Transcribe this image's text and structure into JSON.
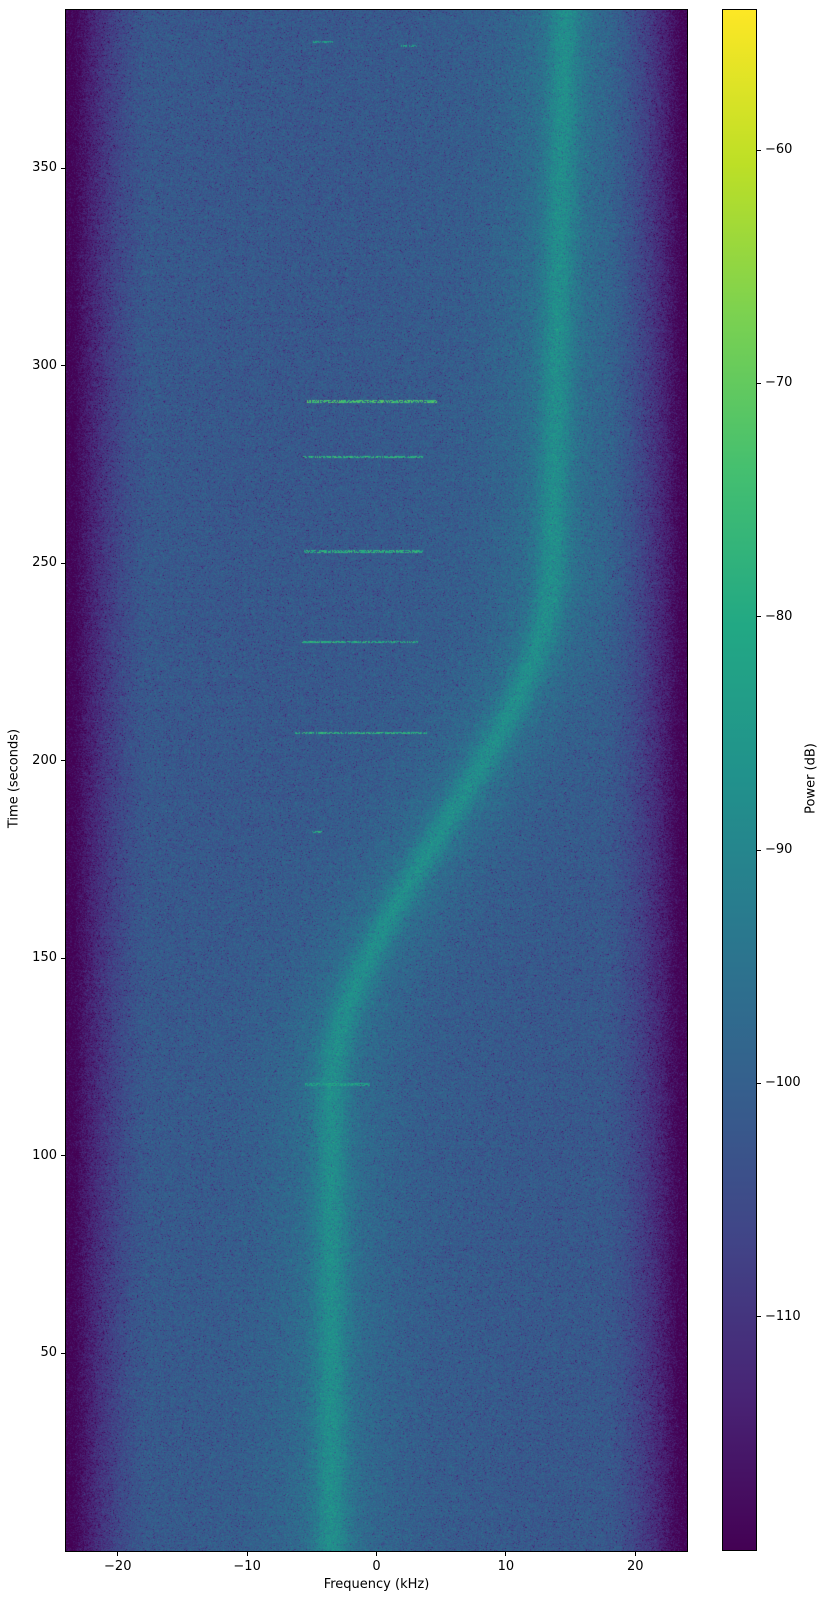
{
  "chart_data": {
    "type": "heatmap",
    "subtype": "spectrogram",
    "title": "",
    "xlabel": "Frequency (kHz)",
    "ylabel": "Time (seconds)",
    "xlim": [
      -24,
      24
    ],
    "ylim": [
      0,
      390
    ],
    "xticks": [
      -20,
      -10,
      0,
      10,
      20
    ],
    "yticks": [
      50,
      100,
      150,
      200,
      250,
      300,
      350
    ],
    "grid": false,
    "colormap": "viridis",
    "colorbar": {
      "label": "Power (dB)",
      "ticks": [
        -60,
        -70,
        -80,
        -90,
        -100,
        -110
      ],
      "vmin": -120,
      "vmax": -54,
      "position": "right"
    },
    "noise_floor_db": -101.5,
    "noise_sigma_db": 2.8,
    "band_edge": {
      "start_khz": 17.5,
      "falloff_coef": 1.05,
      "falloff_exp": 1.6,
      "min_db": -119.5
    },
    "signal_trace": {
      "description": "narrow carrier drifting from -3.5 kHz to ~14.6 kHz (S-curve vs time)",
      "f_start_khz": -3.5,
      "f_end_khz": 13.6,
      "transition_t_start_s": 115,
      "transition_t_span_s": 135,
      "post_drift_khz_per_s": 0.007,
      "core_sigma_khz": 0.9,
      "core_gain_db": 8,
      "mid_sigma_khz": 2.8,
      "mid_gain_db": 4,
      "wide_sigma_khz": 7,
      "wide_gain_db": 2
    },
    "bursts": [
      {
        "t": 382,
        "f0": -4.9,
        "f1": -3.4,
        "strength": 0.3
      },
      {
        "t": 381,
        "f0": 1.8,
        "f1": 3.1,
        "strength": 0.28
      },
      {
        "t": 291,
        "f0": -5.4,
        "f1": 4.7,
        "strength": 0.8
      },
      {
        "t": 277,
        "f0": -5.7,
        "f1": 3.6,
        "strength": 0.6
      },
      {
        "t": 253,
        "f0": -5.6,
        "f1": 3.6,
        "strength": 0.55
      },
      {
        "t": 230,
        "f0": -5.8,
        "f1": 3.2,
        "strength": 0.5
      },
      {
        "t": 207,
        "f0": -6.3,
        "f1": 4.0,
        "strength": 0.55
      },
      {
        "t": 182,
        "f0": -5.0,
        "f1": -4.2,
        "strength": 0.5
      },
      {
        "t": 118,
        "f0": -5.5,
        "f1": -0.5,
        "strength": 0.3
      }
    ],
    "viridis_stops": [
      "#440154",
      "#482475",
      "#414487",
      "#355f8d",
      "#2a788e",
      "#21918c",
      "#22a884",
      "#44bf70",
      "#7ad151",
      "#bddf26",
      "#fde725"
    ]
  }
}
